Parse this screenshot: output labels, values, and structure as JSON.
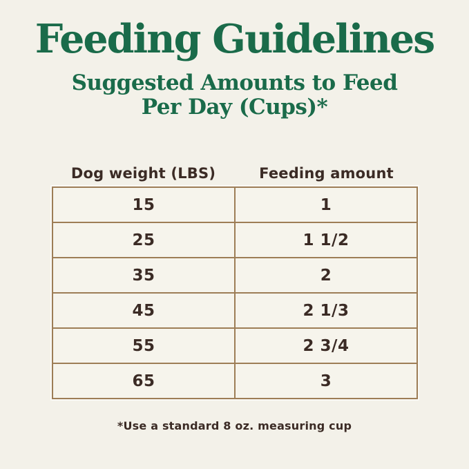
{
  "page": {
    "background_color": "#f3f1e9",
    "accent_green": "#1a6b4a",
    "border_tan": "#9d7d56",
    "text_brown": "#3b2b25"
  },
  "header": {
    "title": "Feeding Guidelines",
    "subtitle_line1": "Suggested Amounts to Feed",
    "subtitle_line2": "Per Day (Cups)*"
  },
  "table": {
    "columns": [
      "Dog weight (LBS)",
      "Feeding amount"
    ],
    "rows": [
      [
        "15",
        "1"
      ],
      [
        "25",
        "1 1/2"
      ],
      [
        "35",
        "2"
      ],
      [
        "45",
        "2 1/3"
      ],
      [
        "55",
        "2 3/4"
      ],
      [
        "65",
        "3"
      ]
    ]
  },
  "footnote": "*Use a standard 8 oz. measuring cup",
  "chart_data": {
    "type": "table",
    "title": "Feeding Guidelines",
    "subtitle": "Suggested Amounts to Feed Per Day (Cups)*",
    "columns": [
      "Dog weight (LBS)",
      "Feeding amount"
    ],
    "rows": [
      [
        15,
        "1"
      ],
      [
        25,
        "1 1/2"
      ],
      [
        35,
        "2"
      ],
      [
        45,
        "2 1/3"
      ],
      [
        55,
        "2 3/4"
      ],
      [
        65,
        "3"
      ]
    ],
    "footnote": "*Use a standard 8 oz. measuring cup",
    "layout": {
      "columns_equal_width": true,
      "values_centered": true,
      "grid": "full-borders"
    }
  }
}
